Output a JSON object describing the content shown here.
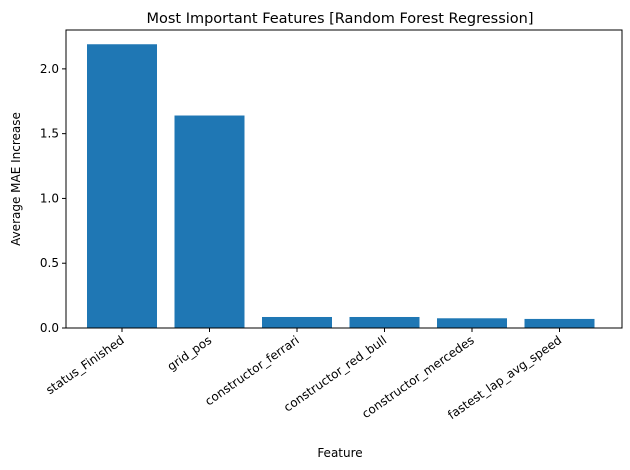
{
  "chart_data": {
    "type": "bar",
    "title": "Most Important Features [Random Forest Regression]",
    "xlabel": "Feature",
    "ylabel": "Average MAE Increase",
    "categories": [
      "status_Finished",
      "grid_pos",
      "constructor_ferrari",
      "constructor_red_bull",
      "constructor_mercedes",
      "fastest_lap_avg_speed"
    ],
    "values": [
      2.19,
      1.64,
      0.085,
      0.085,
      0.075,
      0.07
    ],
    "ylim": [
      0,
      2.3
    ],
    "yticks": [
      0.0,
      0.5,
      1.0,
      1.5,
      2.0
    ],
    "ytick_labels": [
      "0.0",
      "0.5",
      "1.0",
      "1.5",
      "2.0"
    ],
    "bar_color": "#1f77b4",
    "grid": false,
    "legend": false
  }
}
